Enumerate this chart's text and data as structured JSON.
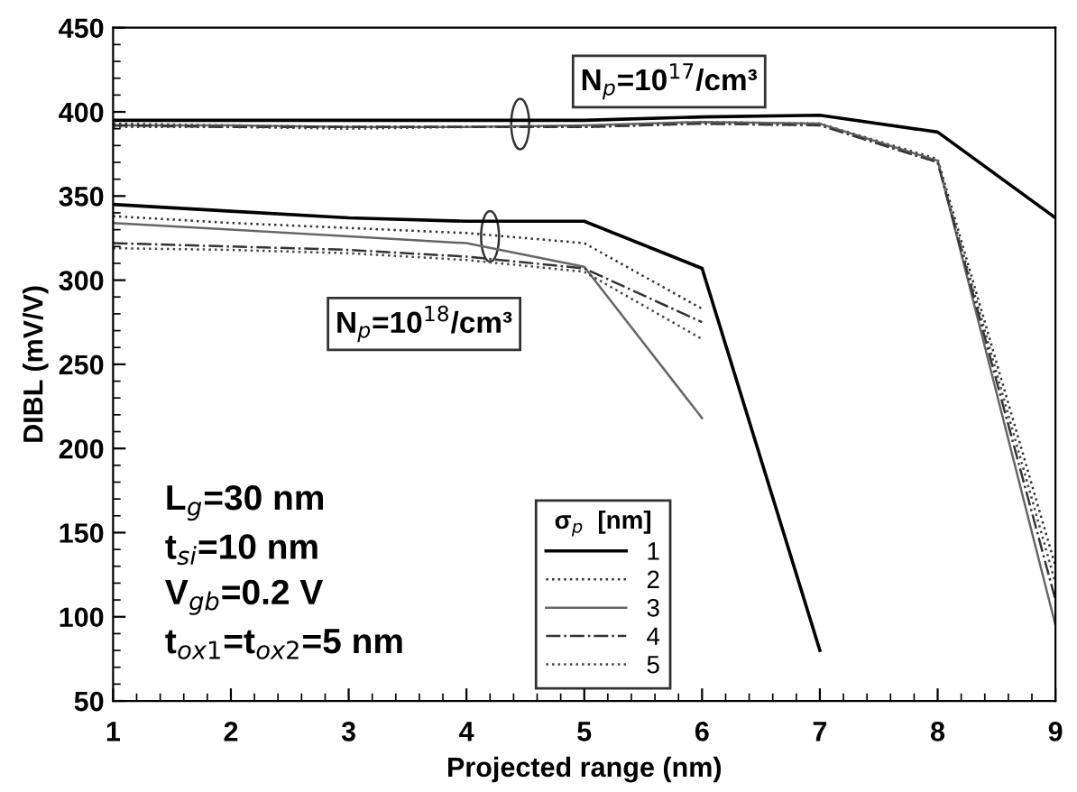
{
  "chart_data": {
    "type": "line",
    "xlabel": "Projected range (nm)",
    "ylabel": "DIBL (mV/V)",
    "x": [
      1,
      2,
      3,
      4,
      5,
      6,
      7,
      8,
      9
    ],
    "xlim": [
      1,
      9
    ],
    "xticks": [
      1,
      2,
      3,
      4,
      5,
      6,
      7,
      8,
      9
    ],
    "ylim": [
      50,
      450
    ],
    "yticks": [
      50,
      100,
      150,
      200,
      250,
      300,
      350,
      400,
      450
    ],
    "grid": false,
    "legend": "bottom",
    "legend_title": "σ$_{p}$  [nm]",
    "marker": "none",
    "series": [
      {
        "name": "1",
        "color": "#000000",
        "line_style": "solid",
        "values": [
          345,
          341,
          337,
          335,
          335,
          307,
          80,
          null,
          null
        ]
      },
      {
        "name": "2",
        "color": "#333333",
        "line_style": "dotted",
        "values": [
          338,
          334,
          331,
          328,
          322,
          283,
          null,
          null,
          null
        ]
      },
      {
        "name": "3",
        "color": "#666666",
        "line_style": "solid",
        "values": [
          334,
          330,
          326,
          322,
          308,
          218,
          null,
          null,
          null
        ]
      },
      {
        "name": "4",
        "color": "#333333",
        "line_style": "dashed",
        "values": [
          322,
          320,
          318,
          314,
          307,
          275,
          null,
          null,
          null
        ]
      },
      {
        "name": "5",
        "color": "#444444",
        "line_style": "dotted",
        "values": [
          319,
          318,
          316,
          312,
          305,
          265,
          null,
          null,
          null
        ]
      },
      {
        "name": "1",
        "color": "#000000",
        "line_style": "solid",
        "values": [
          395,
          395,
          395,
          395,
          395,
          397,
          398,
          388,
          337
        ]
      },
      {
        "name": "2",
        "color": "#333333",
        "line_style": "dotted",
        "values": [
          393,
          392,
          391,
          391,
          391,
          394,
          393,
          372,
          130
        ]
      },
      {
        "name": "3",
        "color": "#666666",
        "line_style": "solid",
        "values": [
          392,
          392,
          391,
          391,
          392,
          394,
          393,
          371,
          95
        ]
      },
      {
        "name": "4",
        "color": "#333333",
        "line_style": "dashed",
        "values": [
          392,
          391,
          391,
          391,
          391,
          393,
          392,
          370,
          110
        ]
      },
      {
        "name": "5",
        "color": "#444444",
        "line_style": "dotted",
        "values": [
          391,
          391,
          390,
          391,
          391,
          393,
          392,
          370,
          120
        ]
      }
    ],
    "annotations": [
      "N$_{p}$=10$^{17}$/cm³",
      "N$_{p}$=10$^{18}$/cm³",
      "L$_{g}$=30 nm\nt$_{si}$=10 nm\nV$_{gb}$=0.2 V\nt$_{ox1}$=t$_{ox2}$=5 nm"
    ]
  }
}
